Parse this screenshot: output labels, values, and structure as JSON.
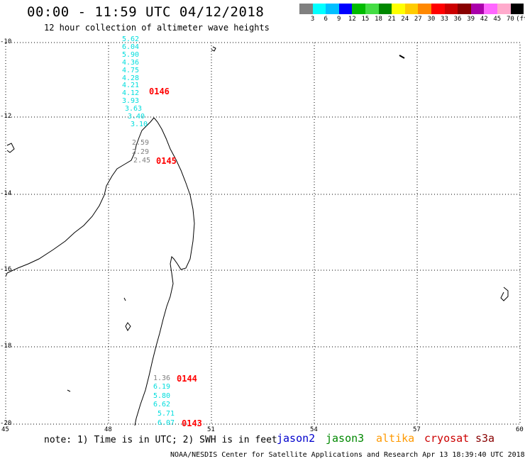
{
  "header": {
    "title": "00:00 - 11:59 UTC 04/12/2018",
    "subtitle": "12 hour collection of altimeter wave heights"
  },
  "color_scale": {
    "colors": [
      "#808080",
      "#00ffff",
      "#00bfff",
      "#0000ff",
      "#00bb00",
      "#44dd44",
      "#008800",
      "#ffff00",
      "#ffcc00",
      "#ff8800",
      "#ff0000",
      "#cc0000",
      "#880000",
      "#aa00aa",
      "#ff66ff",
      "#ffaacc",
      "#000000"
    ],
    "ticks": [
      "3",
      "6",
      "9",
      "12",
      "15",
      "18",
      "21",
      "24",
      "27",
      "30",
      "33",
      "36",
      "39",
      "42",
      "45",
      "70",
      "(ft)"
    ]
  },
  "map": {
    "lat_labels": [
      "-10",
      "-12",
      "-14",
      "-16",
      "-18",
      "-20"
    ],
    "lon_labels": [
      "45",
      "48",
      "51",
      "54",
      "57",
      "60"
    ]
  },
  "passes": [
    {
      "id": "0146",
      "values": [
        {
          "v": "5.62",
          "c": "#00dddd"
        },
        {
          "v": "6.04",
          "c": "#00dddd"
        },
        {
          "v": "5.90",
          "c": "#00dddd"
        },
        {
          "v": "4.36",
          "c": "#00dddd"
        },
        {
          "v": "4.75",
          "c": "#00dddd"
        },
        {
          "v": "4.28",
          "c": "#00dddd"
        },
        {
          "v": "4.21",
          "c": "#00dddd"
        },
        {
          "v": "4.12",
          "c": "#00dddd"
        },
        {
          "v": "3.93",
          "c": "#00dddd"
        },
        {
          "v": "3.63",
          "c": "#00dddd"
        },
        {
          "v": "3.40",
          "c": "#00dddd"
        },
        {
          "v": "3.10",
          "c": "#00dddd"
        }
      ]
    },
    {
      "id": "0145",
      "values": [
        {
          "v": "2.59",
          "c": "#808080"
        },
        {
          "v": "2.29",
          "c": "#808080"
        },
        {
          "v": "2.45",
          "c": "#808080"
        }
      ]
    },
    {
      "id": "0144",
      "values": [
        {
          "v": "1.36",
          "c": "#808080"
        },
        {
          "v": "6.19",
          "c": "#00dddd"
        },
        {
          "v": "5.80",
          "c": "#00dddd"
        },
        {
          "v": "6.62",
          "c": "#00dddd"
        }
      ]
    },
    {
      "id": "0143",
      "values": [
        {
          "v": "5.71",
          "c": "#00dddd"
        },
        {
          "v": "6.07",
          "c": "#00dddd"
        }
      ]
    }
  ],
  "footer": {
    "note": "note: 1) Time is in UTC; 2) SWH is in feet",
    "legend": [
      {
        "label": "jason2",
        "color": "#0000cc"
      },
      {
        "label": "jason3",
        "color": "#008800"
      },
      {
        "label": "altika",
        "color": "#ff9900"
      },
      {
        "label": "cryosat",
        "color": "#cc0000"
      },
      {
        "label": "s3a",
        "color": "#880000"
      }
    ],
    "credit": "NOAA/NESDIS Center for Satellite Applications and Research    Apr 13 18:39:40 UTC 2018"
  }
}
